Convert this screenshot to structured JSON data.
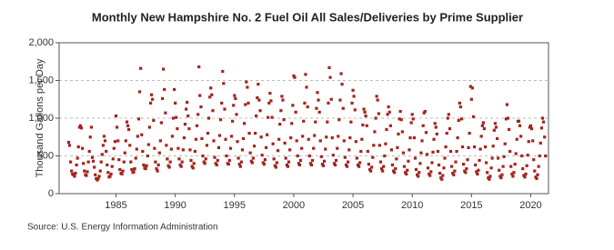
{
  "chart_data": {
    "type": "scatter",
    "title": "Monthly New Hampshire No. 2 Fuel Oil All Sales/Deliveries by Prime Supplier",
    "y_label": "Thousand Gallons per Day",
    "source": "Source: U.S. Energy Information Administration",
    "color": "#a3241c",
    "grid": true,
    "xlim": [
      1980.2,
      2021.5
    ],
    "xticks": [
      1985,
      1990,
      1995,
      2000,
      2005,
      2010,
      2015,
      2020
    ],
    "ylim": [
      0,
      2000
    ],
    "yticks": [
      0,
      500,
      {
        "value": 1000,
        "label": "1,000"
      },
      {
        "value": 1500,
        "label": "1,500"
      },
      {
        "value": 2000,
        "label": "2,000"
      }
    ],
    "x": [
      1981,
      1981.08,
      1981.17,
      1981.25,
      1981.33,
      1981.42,
      1981.5,
      1981.58,
      1981.67,
      1981.75,
      1981.83,
      1981.92,
      1982,
      1982.08,
      1982.17,
      1982.25,
      1982.33,
      1982.42,
      1982.5,
      1982.58,
      1982.67,
      1982.75,
      1982.83,
      1982.92,
      1983,
      1983.08,
      1983.17,
      1983.25,
      1983.33,
      1983.42,
      1983.5,
      1983.58,
      1983.67,
      1983.75,
      1983.83,
      1983.92,
      1984,
      1984.08,
      1984.17,
      1984.25,
      1984.33,
      1984.42,
      1984.5,
      1984.58,
      1984.67,
      1984.75,
      1984.83,
      1984.92,
      1985,
      1985.08,
      1985.17,
      1985.25,
      1985.33,
      1985.42,
      1985.5,
      1985.58,
      1985.67,
      1985.75,
      1985.83,
      1985.92,
      1986,
      1986.08,
      1986.17,
      1986.25,
      1986.33,
      1986.42,
      1986.5,
      1986.58,
      1986.67,
      1986.75,
      1986.83,
      1986.92,
      1987,
      1987.08,
      1987.17,
      1987.25,
      1987.33,
      1987.42,
      1987.5,
      1987.58,
      1987.67,
      1987.75,
      1987.83,
      1987.92,
      1988,
      1988.08,
      1988.17,
      1988.25,
      1988.33,
      1988.42,
      1988.5,
      1988.58,
      1988.67,
      1988.75,
      1988.83,
      1988.92,
      1989,
      1989.08,
      1989.17,
      1989.25,
      1989.33,
      1989.42,
      1989.5,
      1989.58,
      1989.67,
      1989.75,
      1989.83,
      1989.92,
      1990,
      1990.08,
      1990.17,
      1990.25,
      1990.33,
      1990.42,
      1990.5,
      1990.58,
      1990.67,
      1990.75,
      1990.83,
      1990.92,
      1991,
      1991.08,
      1991.17,
      1991.25,
      1991.33,
      1991.42,
      1991.5,
      1991.58,
      1991.67,
      1991.75,
      1991.83,
      1991.92,
      1992,
      1992.08,
      1992.17,
      1992.25,
      1992.33,
      1992.42,
      1992.5,
      1992.58,
      1992.67,
      1992.75,
      1992.83,
      1992.92,
      1993,
      1993.08,
      1993.17,
      1993.25,
      1993.33,
      1993.42,
      1993.5,
      1993.58,
      1993.67,
      1993.75,
      1993.83,
      1993.92,
      1994,
      1994.08,
      1994.17,
      1994.25,
      1994.33,
      1994.42,
      1994.5,
      1994.58,
      1994.67,
      1994.75,
      1994.83,
      1994.92,
      1995,
      1995.08,
      1995.17,
      1995.25,
      1995.33,
      1995.42,
      1995.5,
      1995.58,
      1995.67,
      1995.75,
      1995.83,
      1995.92,
      1996,
      1996.08,
      1996.17,
      1996.25,
      1996.33,
      1996.42,
      1996.5,
      1996.58,
      1996.67,
      1996.75,
      1996.83,
      1996.92,
      1997,
      1997.08,
      1997.17,
      1997.25,
      1997.33,
      1997.42,
      1997.5,
      1997.58,
      1997.67,
      1997.75,
      1997.83,
      1997.92,
      1998,
      1998.08,
      1998.17,
      1998.25,
      1998.33,
      1998.42,
      1998.5,
      1998.58,
      1998.67,
      1998.75,
      1998.83,
      1998.92,
      1999,
      1999.08,
      1999.17,
      1999.25,
      1999.33,
      1999.42,
      1999.5,
      1999.58,
      1999.67,
      1999.75,
      1999.83,
      1999.92,
      2000,
      2000.08,
      2000.17,
      2000.25,
      2000.33,
      2000.42,
      2000.5,
      2000.58,
      2000.67,
      2000.75,
      2000.83,
      2000.92,
      2001,
      2001.08,
      2001.17,
      2001.25,
      2001.33,
      2001.42,
      2001.5,
      2001.58,
      2001.67,
      2001.75,
      2001.83,
      2001.92,
      2002,
      2002.08,
      2002.17,
      2002.25,
      2002.33,
      2002.42,
      2002.5,
      2002.58,
      2002.67,
      2002.75,
      2002.83,
      2002.92,
      2003,
      2003.08,
      2003.17,
      2003.25,
      2003.33,
      2003.42,
      2003.5,
      2003.58,
      2003.67,
      2003.75,
      2003.83,
      2003.92,
      2004,
      2004.08,
      2004.17,
      2004.25,
      2004.33,
      2004.42,
      2004.5,
      2004.58,
      2004.67,
      2004.75,
      2004.83,
      2004.92,
      2005,
      2005.08,
      2005.17,
      2005.25,
      2005.33,
      2005.42,
      2005.5,
      2005.58,
      2005.67,
      2005.75,
      2005.83,
      2005.92,
      2006,
      2006.08,
      2006.17,
      2006.25,
      2006.33,
      2006.42,
      2006.5,
      2006.58,
      2006.67,
      2006.75,
      2006.83,
      2006.92,
      2007,
      2007.08,
      2007.17,
      2007.25,
      2007.33,
      2007.42,
      2007.5,
      2007.58,
      2007.67,
      2007.75,
      2007.83,
      2007.92,
      2008,
      2008.08,
      2008.17,
      2008.25,
      2008.33,
      2008.42,
      2008.5,
      2008.58,
      2008.67,
      2008.75,
      2008.83,
      2008.92,
      2009,
      2009.08,
      2009.17,
      2009.25,
      2009.33,
      2009.42,
      2009.5,
      2009.58,
      2009.67,
      2009.75,
      2009.83,
      2009.92,
      2010,
      2010.08,
      2010.17,
      2010.25,
      2010.33,
      2010.42,
      2010.5,
      2010.58,
      2010.67,
      2010.75,
      2010.83,
      2010.92,
      2011,
      2011.08,
      2011.17,
      2011.25,
      2011.33,
      2011.42,
      2011.5,
      2011.58,
      2011.67,
      2011.75,
      2011.83,
      2011.92,
      2012,
      2012.08,
      2012.17,
      2012.25,
      2012.33,
      2012.42,
      2012.5,
      2012.58,
      2012.67,
      2012.75,
      2012.83,
      2012.92,
      2013,
      2013.08,
      2013.17,
      2013.25,
      2013.33,
      2013.42,
      2013.5,
      2013.58,
      2013.67,
      2013.75,
      2013.83,
      2013.92,
      2014,
      2014.08,
      2014.17,
      2014.25,
      2014.33,
      2014.42,
      2014.5,
      2014.58,
      2014.67,
      2014.75,
      2014.83,
      2014.92,
      2015,
      2015.08,
      2015.17,
      2015.25,
      2015.33,
      2015.42,
      2015.5,
      2015.58,
      2015.67,
      2015.75,
      2015.83,
      2015.92,
      2016,
      2016.08,
      2016.17,
      2016.25,
      2016.33,
      2016.42,
      2016.5,
      2016.58,
      2016.67,
      2016.75,
      2016.83,
      2016.92,
      2017,
      2017.08,
      2017.17,
      2017.25,
      2017.33,
      2017.42,
      2017.5,
      2017.58,
      2017.67,
      2017.75,
      2017.83,
      2017.92,
      2018,
      2018.08,
      2018.17,
      2018.25,
      2018.33,
      2018.42,
      2018.5,
      2018.58,
      2018.67,
      2018.75,
      2018.83,
      2018.92,
      2019,
      2019.08,
      2019.17,
      2019.25,
      2019.33,
      2019.42,
      2019.5,
      2019.58,
      2019.67,
      2019.75,
      2019.83,
      2019.92,
      2020,
      2020.08,
      2020.17,
      2020.25,
      2020.33,
      2020.42,
      2020.5,
      2020.58,
      2020.67,
      2020.75,
      2020.83,
      2020.92,
      2021,
      2021.08,
      2021.17,
      2021.25
    ],
    "values": [
      680,
      640,
      420,
      300,
      260,
      250,
      230,
      270,
      380,
      470,
      620,
      880,
      900,
      870,
      600,
      400,
      300,
      250,
      240,
      290,
      420,
      560,
      750,
      880,
      480,
      430,
      350,
      250,
      200,
      180,
      200,
      230,
      300,
      420,
      520,
      640,
      760,
      700,
      560,
      380,
      280,
      220,
      230,
      260,
      360,
      460,
      600,
      690,
      1030,
      880,
      700,
      450,
      320,
      270,
      260,
      300,
      420,
      540,
      700,
      950,
      900,
      850,
      640,
      420,
      320,
      280,
      290,
      330,
      470,
      590,
      760,
      990,
      1350,
      1660,
      780,
      560,
      380,
      340,
      330,
      370,
      500,
      650,
      880,
      1200,
      1310,
      1250,
      970,
      600,
      420,
      330,
      300,
      380,
      540,
      700,
      940,
      1260,
      1650,
      1380,
      1070,
      640,
      460,
      370,
      350,
      420,
      590,
      760,
      1000,
      1380,
      1200,
      1010,
      860,
      600,
      460,
      380,
      360,
      420,
      580,
      740,
      920,
      1120,
      1210,
      1030,
      860,
      580,
      440,
      360,
      340,
      400,
      560,
      720,
      900,
      1050,
      1680,
      1300,
      1150,
      730,
      500,
      420,
      400,
      460,
      640,
      800,
      1000,
      1280,
      1400,
      1310,
      1100,
      700,
      480,
      400,
      380,
      440,
      610,
      770,
      980,
      1200,
      1620,
      1460,
      1120,
      720,
      500,
      400,
      390,
      440,
      600,
      760,
      960,
      1170,
      1300,
      1260,
      1050,
      690,
      470,
      390,
      360,
      420,
      580,
      730,
      930,
      1180,
      1480,
      1410,
      1200,
      800,
      540,
      430,
      410,
      470,
      630,
      800,
      1030,
      1270,
      1450,
      1240,
      1100,
      750,
      510,
      410,
      390,
      450,
      610,
      780,
      1010,
      1200,
      1330,
      1230,
      1010,
      660,
      460,
      370,
      350,
      410,
      570,
      720,
      920,
      1100,
      1290,
      1240,
      980,
      670,
      470,
      380,
      360,
      420,
      580,
      740,
      930,
      1170,
      1560,
      1540,
      1080,
      700,
      500,
      400,
      380,
      440,
      600,
      760,
      960,
      1200,
      1580,
      1410,
      1150,
      720,
      500,
      400,
      380,
      440,
      600,
      770,
      950,
      1130,
      1340,
      1240,
      1080,
      700,
      490,
      390,
      370,
      430,
      590,
      750,
      950,
      1200,
      1670,
      1540,
      1250,
      740,
      510,
      400,
      380,
      440,
      600,
      760,
      980,
      1240,
      1590,
      1450,
      1130,
      700,
      480,
      380,
      360,
      420,
      580,
      740,
      950,
      1200,
      1370,
      1290,
      1110,
      690,
      470,
      380,
      360,
      410,
      560,
      720,
      910,
      1120,
      1080,
      1030,
      900,
      560,
      390,
      320,
      300,
      350,
      480,
      640,
      820,
      1000,
      1290,
      1240,
      1060,
      640,
      420,
      330,
      300,
      360,
      500,
      660,
      850,
      1050,
      1150,
      1080,
      900,
      580,
      380,
      300,
      280,
      330,
      460,
      610,
      790,
      990,
      1090,
      980,
      820,
      540,
      360,
      280,
      260,
      310,
      430,
      580,
      740,
      940,
      1050,
      990,
      740,
      470,
      320,
      250,
      230,
      280,
      400,
      540,
      700,
      900,
      1070,
      1090,
      810,
      520,
      340,
      260,
      240,
      290,
      410,
      550,
      720,
      930,
      880,
      790,
      560,
      380,
      270,
      210,
      190,
      240,
      340,
      470,
      620,
      800,
      1000,
      1050,
      860,
      560,
      360,
      270,
      250,
      300,
      420,
      560,
      740,
      970,
      1200,
      1150,
      990,
      620,
      390,
      300,
      280,
      330,
      450,
      610,
      800,
      1420,
      1250,
      1400,
      1020,
      620,
      380,
      290,
      260,
      310,
      440,
      590,
      760,
      900,
      940,
      860,
      620,
      410,
      280,
      210,
      190,
      230,
      340,
      470,
      630,
      840,
      930,
      880,
      730,
      470,
      310,
      230,
      210,
      250,
      360,
      490,
      660,
      990,
      1180,
      1000,
      850,
      560,
      360,
      260,
      230,
      280,
      390,
      530,
      720,
      960,
      960,
      900,
      760,
      500,
      330,
      240,
      220,
      260,
      370,
      510,
      690,
      880,
      900,
      860,
      700,
      450,
      300,
      220,
      200,
      250,
      360,
      500,
      670,
      870,
      1000,
      950,
      750,
      500
    ]
  }
}
